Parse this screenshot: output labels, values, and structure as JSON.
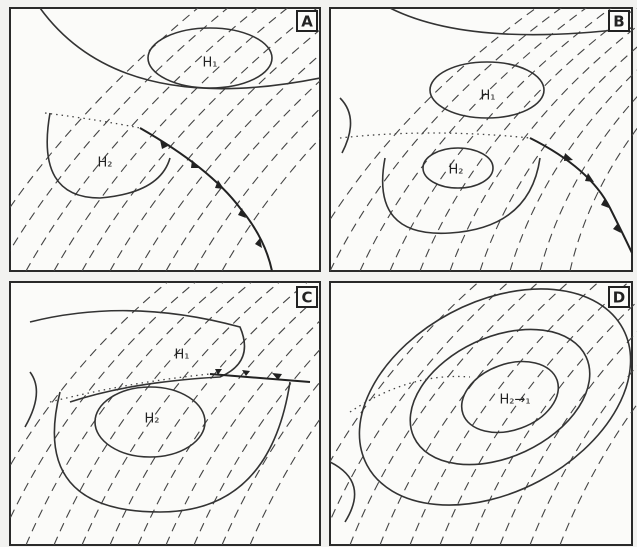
{
  "panels": [
    {
      "label": "A",
      "highs": [
        "H₁",
        "H₂"
      ]
    },
    {
      "label": "B",
      "highs": [
        "H₁",
        "H₂"
      ]
    },
    {
      "label": "C",
      "highs": [
        "H₁",
        "H₂"
      ]
    },
    {
      "label": "D",
      "highs": [
        "H₂→₁"
      ]
    }
  ]
}
